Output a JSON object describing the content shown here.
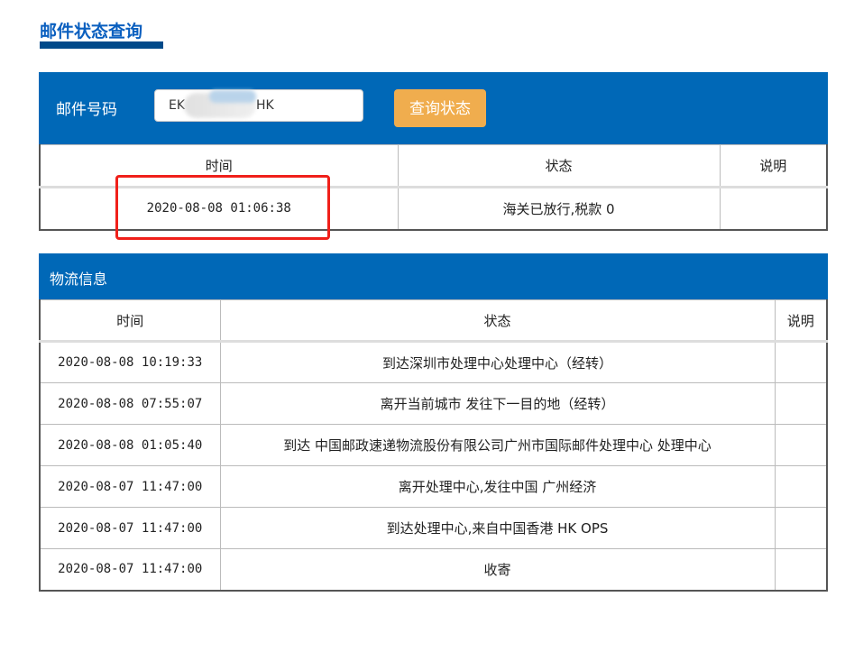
{
  "title": "邮件状态查询",
  "search": {
    "label": "邮件号码",
    "value_prefix": "EK",
    "value_suffix": "HK",
    "button": "查询状态"
  },
  "status_table": {
    "headers": [
      "时间",
      "状态",
      "说明"
    ],
    "rows": [
      [
        "2020-08-08 01:06:38",
        "海关已放行,税款 0",
        ""
      ]
    ]
  },
  "logistics": {
    "title": "物流信息",
    "headers": [
      "时间",
      "状态",
      "说明"
    ],
    "rows": [
      [
        "2020-08-08 10:19:33",
        "到达深圳市处理中心处理中心（经转）",
        ""
      ],
      [
        "2020-08-08 07:55:07",
        "离开当前城市 发往下一目的地（经转）",
        ""
      ],
      [
        "2020-08-08 01:05:40",
        "到达 中国邮政速递物流股份有限公司广州市国际邮件处理中心 处理中心",
        ""
      ],
      [
        "2020-08-07 11:47:00",
        "离开处理中心,发往中国 广州经济",
        ""
      ],
      [
        "2020-08-07 11:47:00",
        "到达处理中心,来自中国香港 HK OPS",
        ""
      ],
      [
        "2020-08-07 11:47:00",
        "收寄",
        ""
      ]
    ]
  },
  "colors": {
    "panel": "#0068b7",
    "button": "#f0ad4e",
    "highlight": "#f0201a"
  }
}
